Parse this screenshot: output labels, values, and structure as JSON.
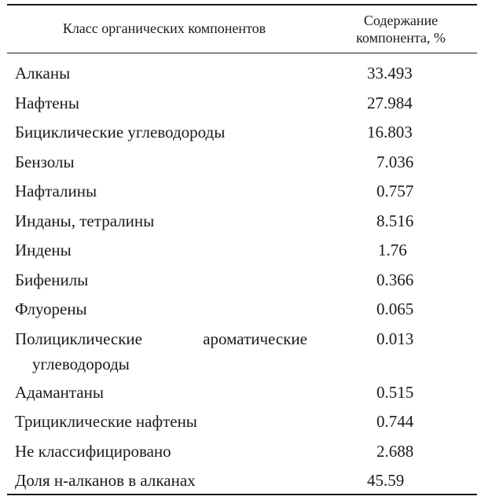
{
  "table": {
    "header": {
      "col1": "Класс органических компонентов",
      "col2_line1": "Содержание",
      "col2_line2": "компонента, %"
    },
    "rows": [
      {
        "name": "Алканы",
        "value": "33.493"
      },
      {
        "name": "Нафтены",
        "value": "27.984"
      },
      {
        "name": "Бициклические углеводороды",
        "value": "16.803"
      },
      {
        "name": "Бензолы",
        "value": "7.036"
      },
      {
        "name": "Нафталины",
        "value": "0.757"
      },
      {
        "name": "Инданы, тетралины",
        "value": "8.516"
      },
      {
        "name": "Индены",
        "value": "1.76"
      },
      {
        "name": "Бифенилы",
        "value": "0.366"
      },
      {
        "name": "Флуорены",
        "value": "0.065"
      },
      {
        "name_line1": "Полициклические ароматические",
        "name_line2": "углеводороды",
        "value": "0.013"
      },
      {
        "name": "Адамантаны",
        "value": "0.515"
      },
      {
        "name": "Трициклические нафтены",
        "value": "0.744"
      },
      {
        "name": "Не классифицировано",
        "value": "2.688"
      },
      {
        "name": "Доля н-алканов в алканах",
        "value": "45.59"
      }
    ]
  }
}
